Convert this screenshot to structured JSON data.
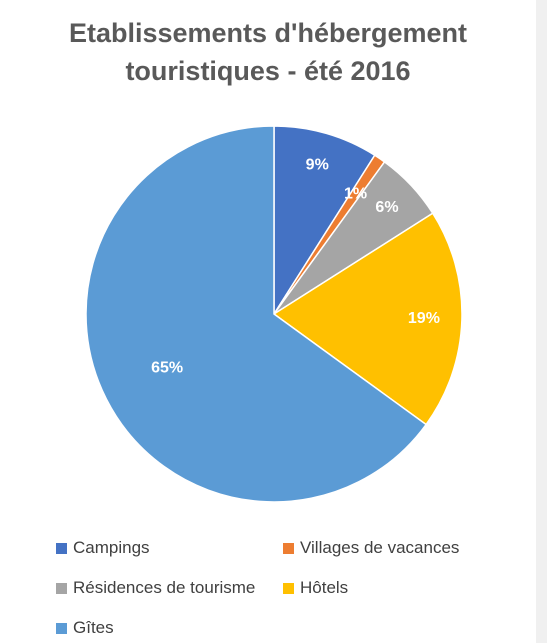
{
  "chart_data": {
    "type": "pie",
    "title_line1": "Etablissements d'hébergement",
    "title_line2": "touristiques - été 2016",
    "slices": [
      {
        "label": "Campings",
        "value": 9,
        "display": "9%",
        "color": "#4472C4"
      },
      {
        "label": "Villages de vacances",
        "value": 1,
        "display": "1%",
        "color": "#ED7D31"
      },
      {
        "label": "Résidences de tourisme",
        "value": 6,
        "display": "6%",
        "color": "#A5A5A5"
      },
      {
        "label": "Hôtels",
        "value": 19,
        "display": "19%",
        "color": "#FFC000"
      },
      {
        "label": "Gîtes",
        "value": 65,
        "display": "65%",
        "color": "#5B9BD5"
      }
    ],
    "legend_position": "bottom"
  }
}
